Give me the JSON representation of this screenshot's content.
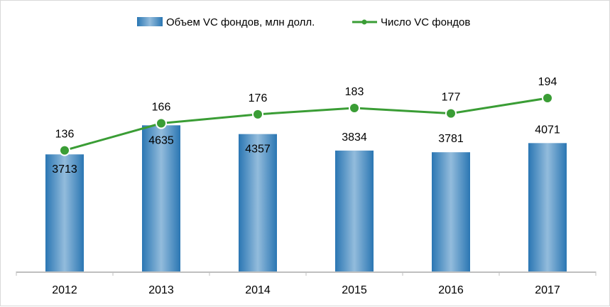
{
  "chart_data": {
    "type": "bar+line",
    "categories": [
      "2012",
      "2013",
      "2014",
      "2015",
      "2016",
      "2017"
    ],
    "series": [
      {
        "name": "Объем VC фондов, млн долл.",
        "type": "bar",
        "axis": "left",
        "values": [
          3713,
          4635,
          4357,
          3834,
          3781,
          4071
        ],
        "color": "#2e7bb6"
      },
      {
        "name": "Число VC фондов",
        "type": "line",
        "axis": "right",
        "values": [
          136,
          166,
          176,
          183,
          177,
          194
        ],
        "color": "#3a9d35"
      }
    ],
    "ylim_bar": [
      0,
      8000
    ],
    "ylim_line": [
      0,
      280
    ],
    "grid": false,
    "legend": "top",
    "data_labels": true
  }
}
